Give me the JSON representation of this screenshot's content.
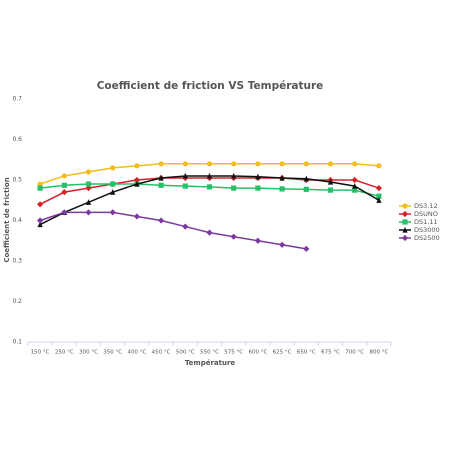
{
  "chart_data": {
    "type": "line",
    "title": "Coefficient de friction VS Température",
    "y_label": "Coefficient de friction",
    "x_label": "Température",
    "categories": [
      "150 °C",
      "250 °C",
      "300 °C",
      "350 °C",
      "400 °C",
      "450 °C",
      "500 °C",
      "550 °C",
      "575 °C",
      "600 °C",
      "625 °C",
      "650 °C",
      "675 °C",
      "700 °C",
      "800 °C"
    ],
    "ylim": [
      0.1,
      0.7
    ],
    "yticks": [
      0.1,
      0.2,
      0.3,
      0.4,
      0.5,
      0.6,
      0.7
    ],
    "grid": false,
    "legend": "right",
    "series": [
      {
        "name": "DS3.12",
        "color": "#f2bd1d",
        "marker": "circle",
        "values": [
          0.49,
          0.51,
          0.52,
          0.53,
          0.535,
          0.54,
          0.54,
          0.54,
          0.54,
          0.54,
          0.54,
          0.54,
          0.54,
          0.54,
          0.535
        ]
      },
      {
        "name": "DSUNO",
        "color": "#d8222a",
        "marker": "diamond",
        "values": [
          0.44,
          0.47,
          0.48,
          0.49,
          0.5,
          0.505,
          0.505,
          0.505,
          0.505,
          0.505,
          0.505,
          0.5,
          0.5,
          0.5,
          0.48
        ]
      },
      {
        "name": "DS1.11",
        "color": "#27c06a",
        "marker": "square",
        "values": [
          0.48,
          0.487,
          0.49,
          0.49,
          0.49,
          0.487,
          0.485,
          0.483,
          0.48,
          0.48,
          0.478,
          0.477,
          0.475,
          0.475,
          0.46
        ]
      },
      {
        "name": "DS3000",
        "color": "#111111",
        "marker": "triangle",
        "values": [
          0.39,
          0.42,
          0.445,
          0.47,
          0.49,
          0.505,
          0.51,
          0.51,
          0.51,
          0.508,
          0.505,
          0.503,
          0.495,
          0.485,
          0.45
        ]
      },
      {
        "name": "DS2500",
        "color": "#7a3b9e",
        "marker": "diamond",
        "values": [
          0.4,
          0.42,
          0.42,
          0.42,
          0.41,
          0.4,
          0.385,
          0.37,
          0.36,
          0.35,
          0.34,
          0.33,
          null,
          null,
          null
        ]
      }
    ]
  }
}
